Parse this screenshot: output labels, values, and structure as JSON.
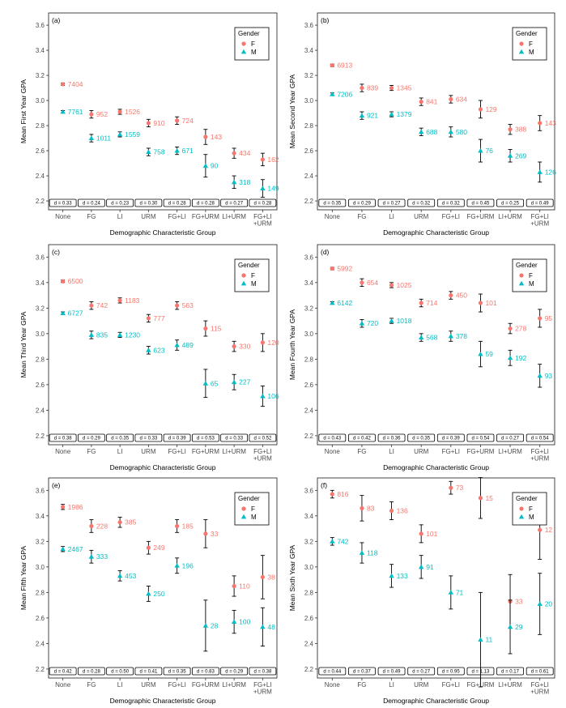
{
  "colors": {
    "F": "#F8766D",
    "M": "#00BFC4",
    "errorbar": "#000000",
    "frame": "#333333"
  },
  "chart_data": [
    {
      "type": "scatter",
      "tag": "(a)",
      "xlabel": "Demographic Characteristic Group",
      "ylabel": "Mean First Year GPA",
      "ylim": [
        2.2,
        3.6
      ],
      "yticks": [
        "2.2",
        "2.4",
        "2.6",
        "2.8",
        "3.0",
        "3.2",
        "3.4",
        "3.6"
      ],
      "categories": [
        "None",
        "FG",
        "LI",
        "URM",
        "FG+LI",
        "FG+URM",
        "LI+URM",
        "FG+LI\n+URM"
      ],
      "legend": {
        "title": "Gender",
        "position": "top-right",
        "entries": [
          "F",
          "M"
        ]
      },
      "series": [
        {
          "name": "F",
          "values": [
            3.13,
            2.89,
            2.91,
            2.82,
            2.84,
            2.71,
            2.58,
            2.53
          ],
          "err": [
            0.01,
            0.03,
            0.02,
            0.03,
            0.03,
            0.06,
            0.04,
            0.05
          ],
          "n": [
            "7404",
            "952",
            "1526",
            "910",
            "724",
            "143",
            "434",
            "162"
          ]
        },
        {
          "name": "M",
          "values": [
            2.91,
            2.7,
            2.73,
            2.59,
            2.6,
            2.48,
            2.35,
            2.3
          ],
          "err": [
            0.01,
            0.03,
            0.02,
            0.03,
            0.03,
            0.09,
            0.05,
            0.07
          ],
          "n": [
            "7761",
            "1011",
            "1559",
            "758",
            "671",
            "90",
            "318",
            "149"
          ]
        }
      ],
      "effect_sizes": [
        "d = 0.33",
        "d = 0.24",
        "d = 0.23",
        "d = 0.30",
        "d = 0.28",
        "d = 0.28",
        "d = 0.27",
        "d = 0.28"
      ]
    },
    {
      "type": "scatter",
      "tag": "(b)",
      "xlabel": "Demographic Characteristic Group",
      "ylabel": "Mean Second Year GPA",
      "ylim": [
        2.2,
        3.6
      ],
      "yticks": [
        "2.2",
        "2.4",
        "2.6",
        "2.8",
        "3.0",
        "3.2",
        "3.4",
        "3.6"
      ],
      "categories": [
        "None",
        "FG",
        "LI",
        "URM",
        "FG+LI",
        "FG+URM",
        "LI+URM",
        "FG+LI\n+URM"
      ],
      "legend": {
        "title": "Gender",
        "position": "top-right",
        "entries": [
          "F",
          "M"
        ]
      },
      "series": [
        {
          "name": "F",
          "values": [
            3.28,
            3.1,
            3.1,
            2.99,
            3.01,
            2.93,
            2.77,
            2.82
          ],
          "err": [
            0.01,
            0.03,
            0.02,
            0.03,
            0.03,
            0.07,
            0.04,
            0.06
          ],
          "n": [
            "6913",
            "839",
            "1345",
            "841",
            "634",
            "129",
            "388",
            "143"
          ]
        },
        {
          "name": "M",
          "values": [
            3.05,
            2.88,
            2.89,
            2.75,
            2.75,
            2.6,
            2.56,
            2.43
          ],
          "err": [
            0.01,
            0.03,
            0.02,
            0.03,
            0.04,
            0.09,
            0.05,
            0.08
          ],
          "n": [
            "7206",
            "921",
            "1379",
            "688",
            "580",
            "76",
            "269",
            "126"
          ]
        }
      ],
      "effect_sizes": [
        "d = 0.35",
        "d = 0.29",
        "d = 0.27",
        "d = 0.32",
        "d = 0.32",
        "d = 0.45",
        "d = 0.25",
        "d = 0.49"
      ]
    },
    {
      "type": "scatter",
      "tag": "(c)",
      "xlabel": "Demographic Characteristic Group",
      "ylabel": "Mean Third Year GPA",
      "ylim": [
        2.2,
        3.6
      ],
      "yticks": [
        "2.2",
        "2.4",
        "2.6",
        "2.8",
        "3.0",
        "3.2",
        "3.4",
        "3.6"
      ],
      "categories": [
        "None",
        "FG",
        "LI",
        "URM",
        "FG+LI",
        "FG+URM",
        "LI+URM",
        "FG+LI\n+URM"
      ],
      "legend": {
        "title": "Gender",
        "position": "top-right",
        "entries": [
          "F",
          "M"
        ]
      },
      "series": [
        {
          "name": "F",
          "values": [
            3.41,
            3.22,
            3.26,
            3.12,
            3.22,
            3.04,
            2.9,
            2.93
          ],
          "err": [
            0.01,
            0.03,
            0.02,
            0.03,
            0.03,
            0.06,
            0.04,
            0.07
          ],
          "n": [
            "6500",
            "742",
            "1183",
            "777",
            "563",
            "115",
            "330",
            "120"
          ]
        },
        {
          "name": "M",
          "values": [
            3.16,
            2.99,
            2.99,
            2.87,
            2.91,
            2.61,
            2.62,
            2.51
          ],
          "err": [
            0.01,
            0.03,
            0.02,
            0.03,
            0.04,
            0.11,
            0.06,
            0.08
          ],
          "n": [
            "6727",
            "835",
            "1230",
            "623",
            "489",
            "65",
            "227",
            "106"
          ]
        }
      ],
      "effect_sizes": [
        "d = 0.38",
        "d = 0.29",
        "d = 0.35",
        "d = 0.33",
        "d = 0.39",
        "d = 0.53",
        "d = 0.33",
        "d = 0.52"
      ]
    },
    {
      "type": "scatter",
      "tag": "(d)",
      "xlabel": "Demographic Characteristic Group",
      "ylabel": "Mean Fourth Year GPA",
      "ylim": [
        2.2,
        3.6
      ],
      "yticks": [
        "2.2",
        "2.4",
        "2.6",
        "2.8",
        "3.0",
        "3.2",
        "3.4",
        "3.6"
      ],
      "categories": [
        "None",
        "FG",
        "LI",
        "URM",
        "FG+LI",
        "FG+URM",
        "LI+URM",
        "FG+LI\n+URM"
      ],
      "legend": {
        "title": "Gender",
        "position": "top-right",
        "entries": [
          "F",
          "M"
        ]
      },
      "series": [
        {
          "name": "F",
          "values": [
            3.51,
            3.4,
            3.38,
            3.24,
            3.3,
            3.24,
            3.04,
            3.12
          ],
          "err": [
            0.01,
            0.03,
            0.02,
            0.03,
            0.03,
            0.07,
            0.04,
            0.07
          ],
          "n": [
            "5992",
            "654",
            "1025",
            "714",
            "450",
            "101",
            "278",
            "95"
          ]
        },
        {
          "name": "M",
          "values": [
            3.24,
            3.08,
            3.1,
            2.97,
            2.98,
            2.84,
            2.81,
            2.67
          ],
          "err": [
            0.01,
            0.03,
            0.02,
            0.03,
            0.04,
            0.1,
            0.06,
            0.09
          ],
          "n": [
            "6142",
            "720",
            "1018",
            "568",
            "378",
            "59",
            "192",
            "93"
          ]
        }
      ],
      "effect_sizes": [
        "d = 0.43",
        "d = 0.42",
        "d = 0.36",
        "d = 0.35",
        "d = 0.39",
        "d = 0.54",
        "d = 0.27",
        "d = 0.54"
      ]
    },
    {
      "type": "scatter",
      "tag": "(e)",
      "xlabel": "Demographic Characteristic Group",
      "ylabel": "Mean Fifth Year GPA",
      "ylim": [
        2.2,
        3.6
      ],
      "yticks": [
        "2.2",
        "2.4",
        "2.6",
        "2.8",
        "3.0",
        "3.2",
        "3.4",
        "3.6"
      ],
      "categories": [
        "None",
        "FG",
        "LI",
        "URM",
        "FG+LI",
        "FG+URM",
        "LI+URM",
        "FG+LI\n+URM"
      ],
      "legend": {
        "title": "Gender",
        "position": "top-right",
        "entries": [
          "F",
          "M"
        ]
      },
      "series": [
        {
          "name": "F",
          "values": [
            3.47,
            3.32,
            3.35,
            3.15,
            3.32,
            3.26,
            2.85,
            2.92
          ],
          "err": [
            0.02,
            0.05,
            0.04,
            0.05,
            0.05,
            0.11,
            0.08,
            0.17
          ],
          "n": [
            "1986",
            "228",
            "385",
            "249",
            "185",
            "33",
            "110",
            "38"
          ]
        },
        {
          "name": "M",
          "values": [
            3.14,
            3.08,
            2.93,
            2.79,
            3.01,
            2.54,
            2.57,
            2.53
          ],
          "err": [
            0.02,
            0.05,
            0.04,
            0.06,
            0.06,
            0.2,
            0.09,
            0.15
          ],
          "n": [
            "2467",
            "333",
            "453",
            "250",
            "196",
            "28",
            "100",
            "48"
          ]
        }
      ],
      "effect_sizes": [
        "d = 0.42",
        "d = 0.28",
        "d = 0.50",
        "d = 0.41",
        "d = 0.35",
        "d = 0.83",
        "d = 0.29",
        "d = 0.38"
      ]
    },
    {
      "type": "scatter",
      "tag": "(f)",
      "xlabel": "Demographic Characteristic Group",
      "ylabel": "Mean Sixth Year GPA",
      "ylim": [
        2.2,
        3.6
      ],
      "yticks": [
        "2.2",
        "2.4",
        "2.6",
        "2.8",
        "3.0",
        "3.2",
        "3.4",
        "3.6"
      ],
      "categories": [
        "None",
        "FG",
        "LI",
        "URM",
        "FG+LI",
        "FG+URM",
        "LI+URM",
        "FG+LI\n+URM"
      ],
      "legend": {
        "title": "Gender",
        "position": "top-right",
        "entries": [
          "F",
          "M"
        ]
      },
      "series": [
        {
          "name": "F",
          "values": [
            3.57,
            3.46,
            3.44,
            3.26,
            3.62,
            3.54,
            2.73,
            3.29
          ],
          "err": [
            0.03,
            0.1,
            0.07,
            0.07,
            0.05,
            0.16,
            0.21,
            0.23
          ],
          "n": [
            "816",
            "83",
            "136",
            "101",
            "73",
            "15",
            "33",
            "12"
          ]
        },
        {
          "name": "M",
          "values": [
            3.2,
            3.11,
            2.93,
            3.0,
            2.8,
            2.43,
            2.53,
            2.71
          ],
          "err": [
            0.03,
            0.08,
            0.09,
            0.09,
            0.13,
            0.37,
            0.21,
            0.24
          ],
          "n": [
            "742",
            "118",
            "133",
            "91",
            "71",
            "11",
            "29",
            "20"
          ]
        }
      ],
      "effect_sizes": [
        "d = 0.44",
        "d = 0.37",
        "d = 0.49",
        "d = 0.27",
        "d = 0.95",
        "d = 1.13",
        "d = 0.17",
        "d = 0.61"
      ]
    }
  ]
}
